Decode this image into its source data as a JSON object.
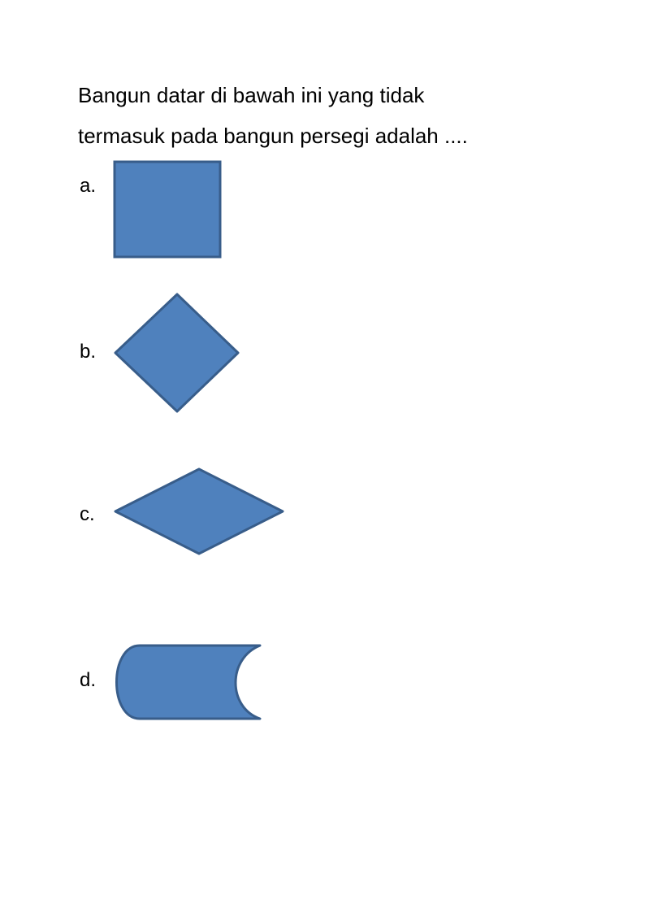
{
  "question": {
    "line1": "Bangun datar di bawah ini yang tidak",
    "line2": "termasuk pada bangun persegi adalah ...."
  },
  "options": [
    {
      "label": "a.",
      "shape": "square"
    },
    {
      "label": "b.",
      "shape": "square-rotated"
    },
    {
      "label": "c.",
      "shape": "rhombus"
    },
    {
      "label": "d.",
      "shape": "stored-data"
    }
  ],
  "colors": {
    "shape_fill": "#4f81bd",
    "shape_stroke": "#385d8a"
  }
}
